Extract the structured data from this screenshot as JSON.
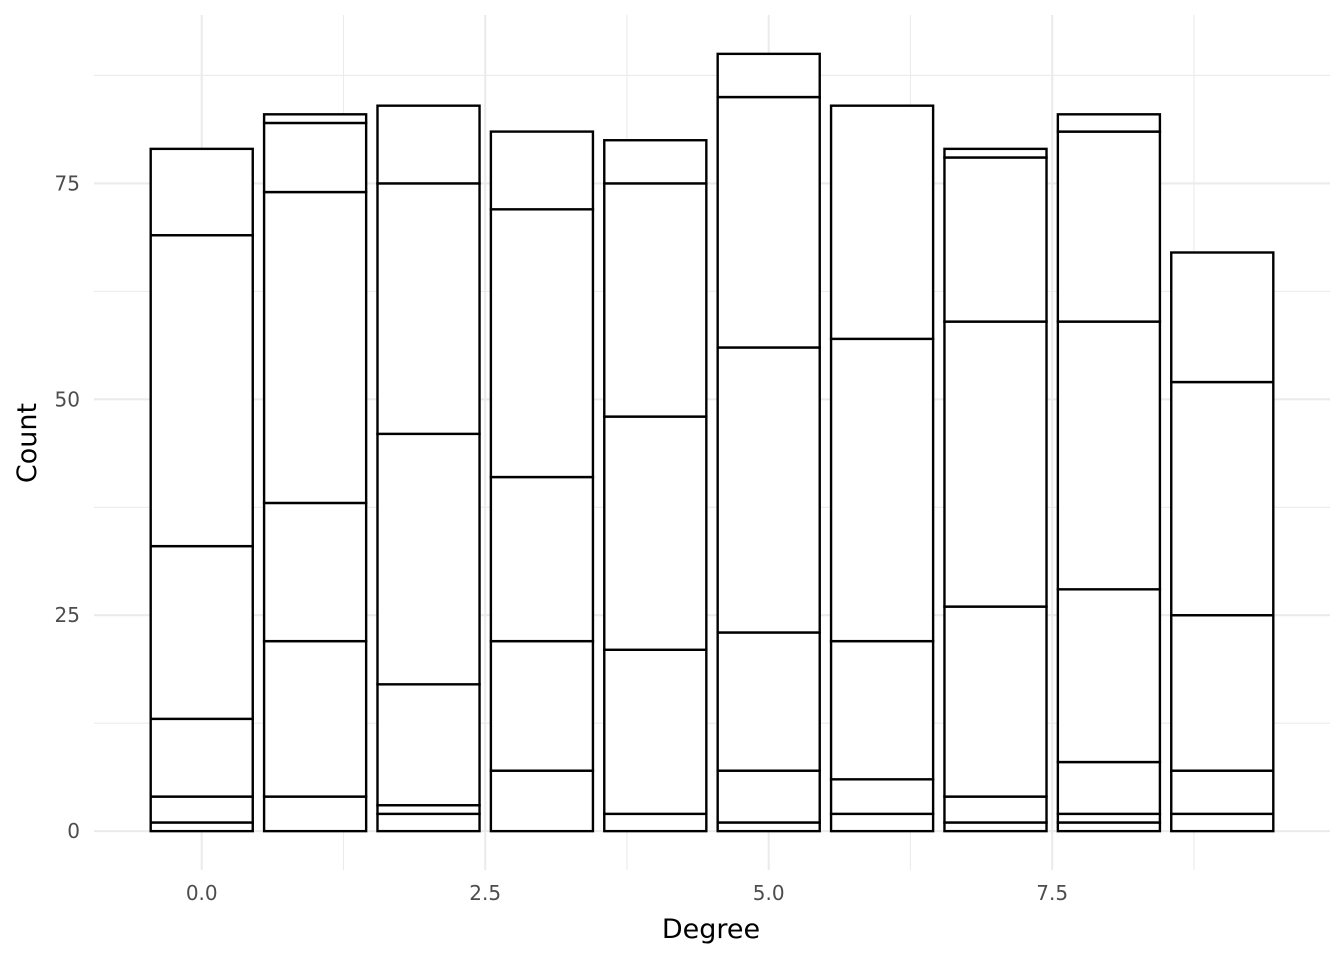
{
  "chart_data": {
    "type": "bar",
    "stacked": true,
    "title": "",
    "xlabel": "Degree",
    "ylabel": "Count",
    "x": [
      0,
      1,
      2,
      3,
      4,
      5,
      6,
      7,
      8,
      9
    ],
    "segment_boundaries": [
      [
        0,
        1,
        4,
        13,
        33,
        69,
        79
      ],
      [
        0,
        4,
        22,
        38,
        74,
        82,
        83
      ],
      [
        0,
        2,
        3,
        17,
        46,
        75,
        84
      ],
      [
        0,
        7,
        22,
        41,
        72,
        81
      ],
      [
        0,
        2,
        21,
        48,
        75,
        80
      ],
      [
        0,
        1,
        7,
        23,
        56,
        85,
        90
      ],
      [
        0,
        2,
        6,
        22,
        57,
        84
      ],
      [
        0,
        1,
        4,
        26,
        59,
        78,
        79
      ],
      [
        0,
        1,
        2,
        8,
        28,
        59,
        81,
        83
      ],
      [
        0,
        2,
        7,
        25,
        52,
        67
      ]
    ],
    "totals": [
      79,
      83,
      84,
      81,
      80,
      90,
      84,
      79,
      83,
      67
    ],
    "xlim": [
      -0.95,
      9.95
    ],
    "ylim": [
      -4.5,
      94.5
    ],
    "x_ticks": [
      0.0,
      2.5,
      5.0,
      7.5
    ],
    "x_tick_labels": [
      "0.0",
      "2.5",
      "5.0",
      "7.5"
    ],
    "y_ticks": [
      0,
      25,
      50,
      75
    ],
    "y_tick_labels": [
      "0",
      "25",
      "50",
      "75"
    ],
    "bar_width": 0.9,
    "grid": true,
    "legend": "none",
    "colors": {
      "bar_fill": "#ffffff",
      "bar_stroke": "#000000",
      "grid": "#ebebeb",
      "tick_text": "#4d4d4d",
      "axis_title": "#000000"
    }
  }
}
